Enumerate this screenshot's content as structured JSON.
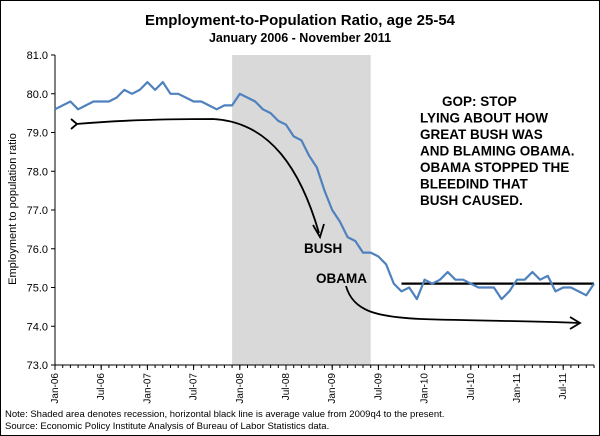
{
  "chart_data": {
    "type": "line",
    "title": "Employment-to-Population Ratio, age 25-54",
    "subtitle": "January 2006 - November 2011",
    "ylabel": "Employment to population ratio",
    "xlabel": "",
    "ylim": [
      73.0,
      81.0
    ],
    "yticks": [
      "73.0",
      "74.0",
      "75.0",
      "76.0",
      "77.0",
      "78.0",
      "79.0",
      "80.0",
      "81.0"
    ],
    "xlim": [
      "2006-01",
      "2011-11"
    ],
    "xticks": [
      {
        "x": "2006-01",
        "label": "Jan-06"
      },
      {
        "x": "2006-07",
        "label": "Jul-06"
      },
      {
        "x": "2007-01",
        "label": "Jan-07"
      },
      {
        "x": "2007-07",
        "label": "Jul-07"
      },
      {
        "x": "2008-01",
        "label": "Jan-08"
      },
      {
        "x": "2008-07",
        "label": "Jul-08"
      },
      {
        "x": "2009-01",
        "label": "Jan-09"
      },
      {
        "x": "2009-07",
        "label": "Jul-09"
      },
      {
        "x": "2010-01",
        "label": "Jan-10"
      },
      {
        "x": "2010-07",
        "label": "Jul-10"
      },
      {
        "x": "2011-01",
        "label": "Jan-11"
      },
      {
        "x": "2011-07",
        "label": "Jul-11"
      }
    ],
    "grid": false,
    "series": [
      {
        "color": "#4f81bd",
        "x": [
          "2006-01",
          "2006-02",
          "2006-03",
          "2006-04",
          "2006-05",
          "2006-06",
          "2006-07",
          "2006-08",
          "2006-09",
          "2006-10",
          "2006-11",
          "2006-12",
          "2007-01",
          "2007-02",
          "2007-03",
          "2007-04",
          "2007-05",
          "2007-06",
          "2007-07",
          "2007-08",
          "2007-09",
          "2007-10",
          "2007-11",
          "2007-12",
          "2008-01",
          "2008-02",
          "2008-03",
          "2008-04",
          "2008-05",
          "2008-06",
          "2008-07",
          "2008-08",
          "2008-09",
          "2008-10",
          "2008-11",
          "2008-12",
          "2009-01",
          "2009-02",
          "2009-03",
          "2009-04",
          "2009-05",
          "2009-06",
          "2009-07",
          "2009-08",
          "2009-09",
          "2009-10",
          "2009-11",
          "2009-12",
          "2010-01",
          "2010-02",
          "2010-03",
          "2010-04",
          "2010-05",
          "2010-06",
          "2010-07",
          "2010-08",
          "2010-09",
          "2010-10",
          "2010-11",
          "2010-12",
          "2011-01",
          "2011-02",
          "2011-03",
          "2011-04",
          "2011-05",
          "2011-06",
          "2011-07",
          "2011-08",
          "2011-09",
          "2011-10",
          "2011-11"
        ],
        "values": [
          79.6,
          79.7,
          79.8,
          79.6,
          79.7,
          79.8,
          79.8,
          79.8,
          79.9,
          80.1,
          80.0,
          80.1,
          80.3,
          80.1,
          80.3,
          80.0,
          80.0,
          79.9,
          79.8,
          79.8,
          79.7,
          79.6,
          79.7,
          79.7,
          80.0,
          79.9,
          79.8,
          79.6,
          79.5,
          79.3,
          79.2,
          78.9,
          78.8,
          78.4,
          78.1,
          77.5,
          77.0,
          76.7,
          76.3,
          76.2,
          75.9,
          75.9,
          75.8,
          75.6,
          75.1,
          74.9,
          75.0,
          74.7,
          75.2,
          75.1,
          75.2,
          75.4,
          75.2,
          75.2,
          75.1,
          75.0,
          75.0,
          75.0,
          74.7,
          74.9,
          75.2,
          75.2,
          75.4,
          75.2,
          75.3,
          74.9,
          75.0,
          75.0,
          74.9,
          74.8,
          75.1
        ]
      }
    ],
    "shaded_region": {
      "x_start": "2007-12",
      "x_end": "2009-06",
      "color": "#d9d9d9"
    },
    "reference_line": {
      "x_start": "2009-10",
      "x_end": "2011-11",
      "value": 75.1,
      "color": "#000000"
    },
    "annotations": {
      "bush_label": "BUSH",
      "obama_label": "OBAMA",
      "gop_text": [
        "GOP: STOP",
        "LYING ABOUT HOW",
        "GREAT BUSH WAS",
        "AND BLAMING OBAMA.",
        "OBAMA STOPPED THE",
        "BLEEDIND THAT",
        "BUSH CAUSED."
      ]
    },
    "notes": [
      "Note: Shaded area  denotes recession, horizontal black line is average value from  2009q4 to the present.",
      "Source: Economic Policy Institute Analysis of Bureau of Labor Statistics data."
    ]
  }
}
